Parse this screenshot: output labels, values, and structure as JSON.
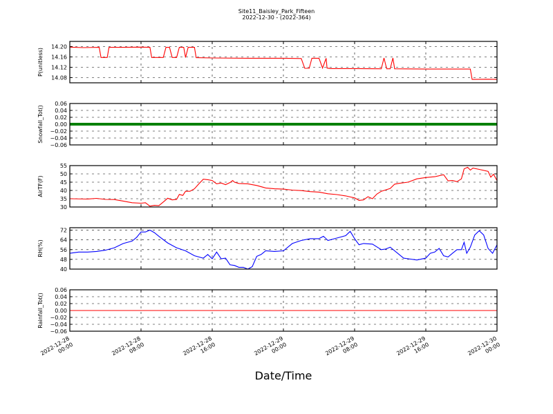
{
  "title": "Site11_Baisley_Park_Fifteen",
  "subtitle": "2022-12-30 - (2022-364)",
  "xlabel": "Date/Time",
  "x_ticks": [
    "2022-12-28\n00:00",
    "2022-12-28\n08:00",
    "2022-12-28\n16:00",
    "2022-12-29\n00:00",
    "2022-12-29\n08:00",
    "2022-12-29\n16:00",
    "2022-12-30\n00:00"
  ],
  "chart_data": [
    {
      "type": "line",
      "ylabel": "P(unitless)",
      "ylim": [
        14.06,
        14.22
      ],
      "yticks": [
        "14.08",
        "14.12",
        "14.16",
        "14.20"
      ],
      "ytick_values": [
        14.08,
        14.12,
        14.16,
        14.2
      ],
      "grid": true,
      "x_hours_range": [
        0,
        48
      ],
      "series": [
        {
          "color": "#ff0000",
          "points": [
            [
              0,
              14.198
            ],
            [
              1.5,
              14.196
            ],
            [
              3.3,
              14.197
            ],
            [
              3.5,
              14.158
            ],
            [
              4.2,
              14.158
            ],
            [
              4.4,
              14.197
            ],
            [
              6,
              14.197
            ],
            [
              8,
              14.198
            ],
            [
              9,
              14.197
            ],
            [
              9.2,
              14.158
            ],
            [
              10.5,
              14.158
            ],
            [
              10.8,
              14.197
            ],
            [
              11.2,
              14.197
            ],
            [
              11.5,
              14.158
            ],
            [
              12,
              14.158
            ],
            [
              12.3,
              14.197
            ],
            [
              12.8,
              14.197
            ],
            [
              13,
              14.158
            ],
            [
              13.3,
              14.197
            ],
            [
              14,
              14.197
            ],
            [
              14.2,
              14.157
            ],
            [
              16,
              14.156
            ],
            [
              20,
              14.155
            ],
            [
              24,
              14.155
            ],
            [
              26,
              14.154
            ],
            [
              26.4,
              14.116
            ],
            [
              26.9,
              14.116
            ],
            [
              27.2,
              14.155
            ],
            [
              28,
              14.155
            ],
            [
              28.4,
              14.117
            ],
            [
              28.8,
              14.155
            ],
            [
              28.9,
              14.117
            ],
            [
              29.3,
              14.115
            ],
            [
              32,
              14.115
            ],
            [
              35,
              14.114
            ],
            [
              35.3,
              14.156
            ],
            [
              35.6,
              14.114
            ],
            [
              36,
              14.114
            ],
            [
              36.3,
              14.156
            ],
            [
              36.5,
              14.114
            ],
            [
              40,
              14.113
            ],
            [
              44,
              14.113
            ],
            [
              45,
              14.113
            ],
            [
              45.2,
              14.073
            ],
            [
              47,
              14.074
            ],
            [
              48,
              14.073
            ]
          ]
        }
      ]
    },
    {
      "type": "scatter",
      "ylabel": "Snowfall_Tot()",
      "ylim": [
        -0.06,
        0.06
      ],
      "yticks": [
        "−0.06",
        "−0.04",
        "−0.02",
        "0.00",
        "0.02",
        "0.04",
        "0.06"
      ],
      "ytick_values": [
        -0.06,
        -0.04,
        -0.02,
        0.0,
        0.02,
        0.04,
        0.06
      ],
      "grid": true,
      "x_hours_range": [
        0,
        48
      ],
      "series": [
        {
          "color": "#008000",
          "constant": 0.0
        }
      ]
    },
    {
      "type": "line",
      "ylabel": "AirTF(F)",
      "ylim": [
        30,
        55
      ],
      "yticks": [
        "30",
        "35",
        "40",
        "45",
        "50",
        "55"
      ],
      "ytick_values": [
        30,
        35,
        40,
        45,
        50,
        55
      ],
      "grid": true,
      "x_hours_range": [
        0,
        48
      ],
      "series": [
        {
          "color": "#ff0000",
          "points": [
            [
              0,
              35
            ],
            [
              2,
              34.8
            ],
            [
              3,
              35.2
            ],
            [
              4,
              34.6
            ],
            [
              5,
              34.5
            ],
            [
              6,
              33.6
            ],
            [
              7,
              32.6
            ],
            [
              8,
              32.3
            ],
            [
              8.5,
              32.6
            ],
            [
              9,
              30.5
            ],
            [
              9.5,
              31
            ],
            [
              10,
              30.8
            ],
            [
              10.5,
              33
            ],
            [
              11,
              35.3
            ],
            [
              11.5,
              34.3
            ],
            [
              12,
              34.6
            ],
            [
              12.3,
              37.6
            ],
            [
              12.7,
              37
            ],
            [
              13,
              39.5
            ],
            [
              13.5,
              39.5
            ],
            [
              14,
              41
            ],
            [
              14.5,
              44
            ],
            [
              15,
              46.8
            ],
            [
              15.5,
              46.5
            ],
            [
              16,
              46
            ],
            [
              16.5,
              44
            ],
            [
              17,
              44.5
            ],
            [
              17.5,
              43.5
            ],
            [
              18,
              44.8
            ],
            [
              18.3,
              46
            ],
            [
              18.5,
              45
            ],
            [
              19,
              44.2
            ],
            [
              20,
              44
            ],
            [
              21,
              43
            ],
            [
              22,
              41.5
            ],
            [
              23,
              41
            ],
            [
              24,
              40.8
            ],
            [
              25,
              40.2
            ],
            [
              26,
              39.9
            ],
            [
              27,
              39.3
            ],
            [
              28,
              39
            ],
            [
              29,
              38
            ],
            [
              30,
              37.5
            ],
            [
              31,
              36.7
            ],
            [
              32,
              35.5
            ],
            [
              32.5,
              34
            ],
            [
              33,
              34.3
            ],
            [
              33.5,
              36.2
            ],
            [
              34,
              35
            ],
            [
              34.5,
              37.8
            ],
            [
              35,
              39.5
            ],
            [
              36,
              41.2
            ],
            [
              36.5,
              43.8
            ],
            [
              37,
              44.3
            ],
            [
              38,
              45
            ],
            [
              39,
              47
            ],
            [
              40,
              47.8
            ],
            [
              41,
              48.3
            ],
            [
              42,
              49.5
            ],
            [
              42.5,
              45.8
            ],
            [
              43,
              46
            ],
            [
              43.5,
              45.3
            ],
            [
              44,
              47
            ],
            [
              44.3,
              53
            ],
            [
              44.7,
              54
            ],
            [
              45,
              52.3
            ],
            [
              45.3,
              53.5
            ],
            [
              46,
              52.7
            ],
            [
              47,
              51.5
            ],
            [
              47.3,
              48
            ],
            [
              47.6,
              49.8
            ],
            [
              48,
              46
            ]
          ]
        }
      ]
    },
    {
      "type": "line",
      "ylabel": "RH(%)",
      "ylim": [
        40,
        74
      ],
      "yticks": [
        "40",
        "48",
        "56",
        "64",
        "72"
      ],
      "ytick_values": [
        40,
        48,
        56,
        64,
        72
      ],
      "grid": true,
      "x_hours_range": [
        0,
        48
      ],
      "series": [
        {
          "color": "#0000ff",
          "points": [
            [
              0,
              53
            ],
            [
              1,
              54
            ],
            [
              2,
              54
            ],
            [
              3,
              54.5
            ],
            [
              4,
              55.5
            ],
            [
              5,
              57.5
            ],
            [
              6,
              61
            ],
            [
              7,
              63
            ],
            [
              7.5,
              66
            ],
            [
              8,
              70.5
            ],
            [
              8.5,
              70.5
            ],
            [
              9,
              72
            ],
            [
              9.5,
              70
            ],
            [
              10,
              67
            ],
            [
              11,
              61.5
            ],
            [
              12,
              57.5
            ],
            [
              13,
              55
            ],
            [
              14,
              51
            ],
            [
              15,
              49
            ],
            [
              15.5,
              52
            ],
            [
              16,
              48.5
            ],
            [
              16.5,
              54
            ],
            [
              17,
              48.5
            ],
            [
              17.5,
              49
            ],
            [
              18,
              43.5
            ],
            [
              18.5,
              43
            ],
            [
              19,
              41.5
            ],
            [
              19.5,
              41.5
            ],
            [
              20,
              40
            ],
            [
              20.5,
              42
            ],
            [
              21,
              50.5
            ],
            [
              21.5,
              52
            ],
            [
              22,
              55
            ],
            [
              23,
              54.5
            ],
            [
              24,
              55
            ],
            [
              25,
              61
            ],
            [
              26,
              63.5
            ],
            [
              27,
              65
            ],
            [
              28,
              65
            ],
            [
              28.5,
              67
            ],
            [
              29,
              63.5
            ],
            [
              30,
              65.5
            ],
            [
              31,
              67.5
            ],
            [
              31.5,
              71
            ],
            [
              32,
              65
            ],
            [
              32.5,
              60
            ],
            [
              33,
              61
            ],
            [
              34,
              60.5
            ],
            [
              35,
              56
            ],
            [
              35.5,
              56.5
            ],
            [
              36,
              58
            ],
            [
              37,
              52
            ],
            [
              37.5,
              49
            ],
            [
              38,
              48.5
            ],
            [
              39,
              47.5
            ],
            [
              40,
              49
            ],
            [
              40.5,
              53
            ],
            [
              41,
              54
            ],
            [
              41.5,
              57
            ],
            [
              42,
              51
            ],
            [
              42.5,
              50
            ],
            [
              43,
              53
            ],
            [
              43.5,
              56
            ],
            [
              44,
              56
            ],
            [
              44.3,
              62
            ],
            [
              44.6,
              53
            ],
            [
              45,
              58
            ],
            [
              45.5,
              68
            ],
            [
              46,
              71.5
            ],
            [
              46.5,
              68
            ],
            [
              47,
              57
            ],
            [
              47.5,
              53
            ],
            [
              48,
              60
            ]
          ]
        }
      ]
    },
    {
      "type": "line",
      "ylabel": "Rainfall_Tot()",
      "ylim": [
        -0.06,
        0.06
      ],
      "yticks": [
        "−0.06",
        "−0.04",
        "−0.02",
        "0.00",
        "0.02",
        "0.04",
        "0.06"
      ],
      "ytick_values": [
        -0.06,
        -0.04,
        -0.02,
        0.0,
        0.02,
        0.04,
        0.06
      ],
      "grid": true,
      "x_hours_range": [
        0,
        48
      ],
      "series": [
        {
          "color": "#ff0000",
          "points": [
            [
              0,
              0
            ],
            [
              48,
              0
            ]
          ]
        }
      ]
    }
  ]
}
